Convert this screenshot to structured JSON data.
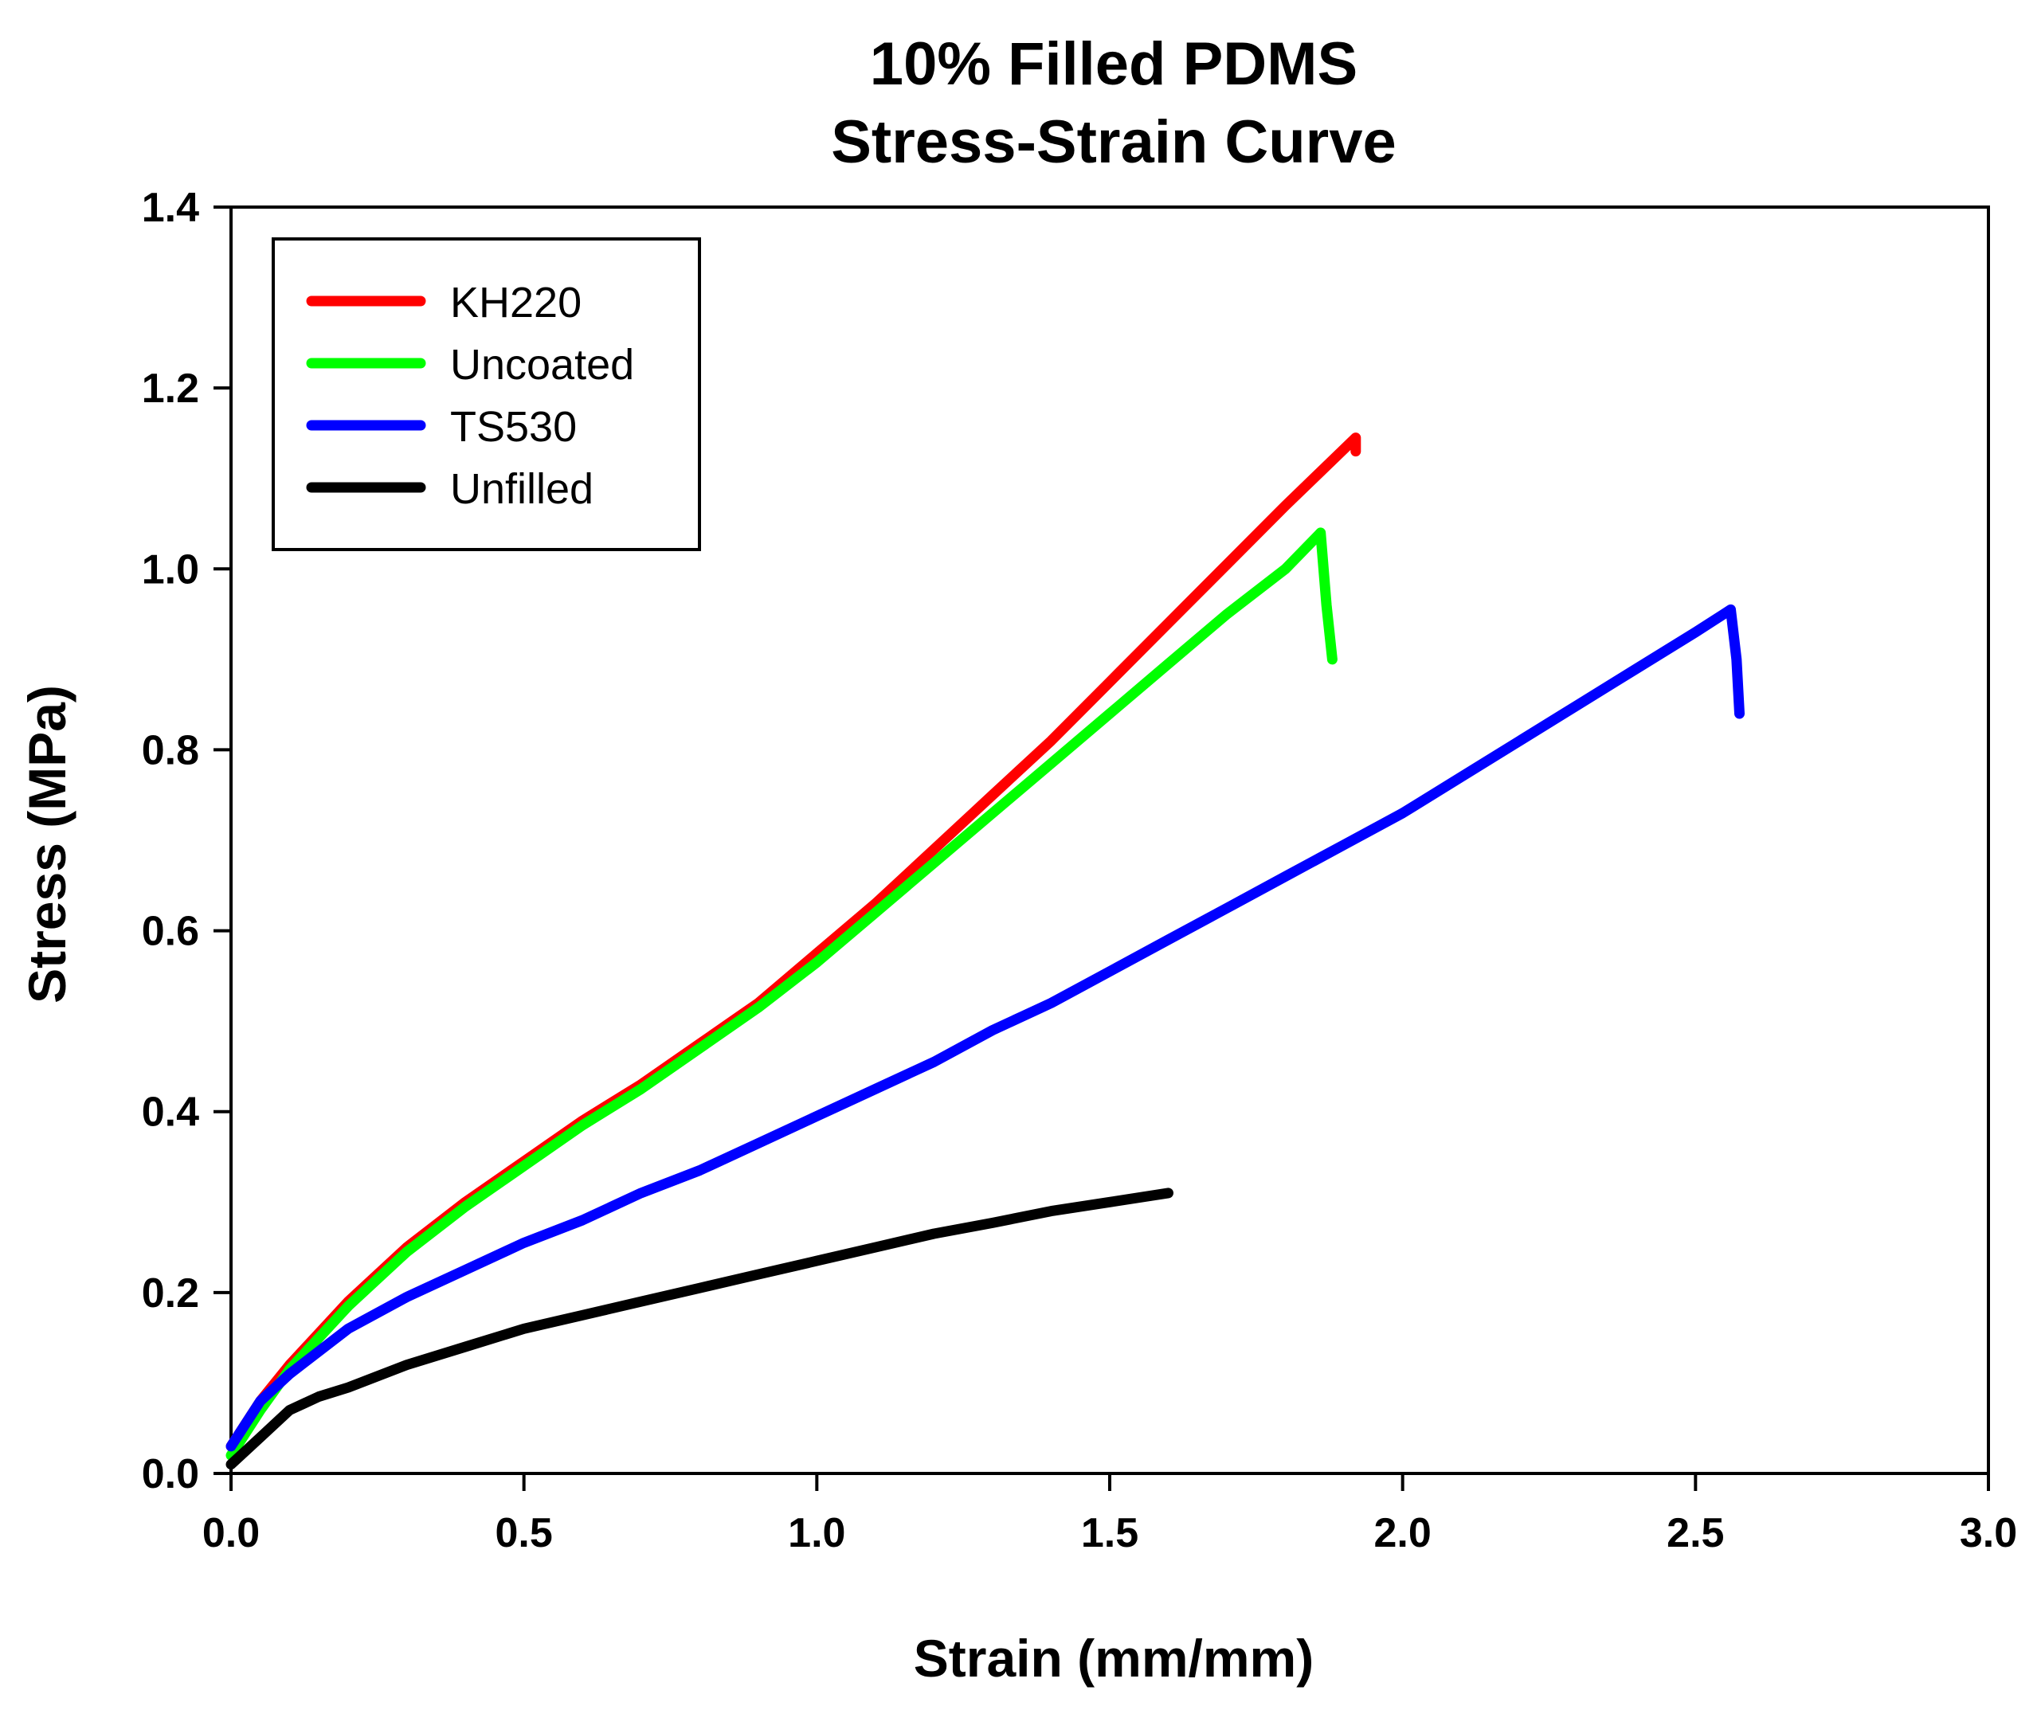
{
  "chart_data": {
    "type": "line",
    "title_line1": "10% Filled PDMS",
    "title_line2": "Stress-Strain Curve",
    "xlabel": "Strain (mm/mm)",
    "ylabel": "Stress (MPa)",
    "xlim": [
      0,
      3.0
    ],
    "ylim": [
      0,
      1.4
    ],
    "x_ticks": [
      "0.0",
      "0.5",
      "1.0",
      "1.5",
      "2.0",
      "2.5",
      "3.0"
    ],
    "y_ticks": [
      "0.0",
      "0.2",
      "0.4",
      "0.6",
      "0.8",
      "1.0",
      "1.2",
      "1.4"
    ],
    "grid": false,
    "legend_position": "top-left",
    "series": [
      {
        "name": "KH220",
        "color": "#ff0000",
        "points": [
          [
            0.0,
            0.03
          ],
          [
            0.05,
            0.08
          ],
          [
            0.1,
            0.12
          ],
          [
            0.2,
            0.19
          ],
          [
            0.3,
            0.25
          ],
          [
            0.4,
            0.3
          ],
          [
            0.5,
            0.345
          ],
          [
            0.6,
            0.39
          ],
          [
            0.7,
            0.43
          ],
          [
            0.8,
            0.475
          ],
          [
            0.9,
            0.52
          ],
          [
            1.0,
            0.575
          ],
          [
            1.1,
            0.63
          ],
          [
            1.2,
            0.69
          ],
          [
            1.3,
            0.75
          ],
          [
            1.4,
            0.81
          ],
          [
            1.5,
            0.875
          ],
          [
            1.6,
            0.94
          ],
          [
            1.7,
            1.005
          ],
          [
            1.8,
            1.07
          ],
          [
            1.92,
            1.145
          ],
          [
            1.92,
            1.13
          ]
        ]
      },
      {
        "name": "Uncoated",
        "color": "#00ff00",
        "points": [
          [
            0.0,
            0.02
          ],
          [
            0.05,
            0.07
          ],
          [
            0.1,
            0.115
          ],
          [
            0.2,
            0.185
          ],
          [
            0.3,
            0.245
          ],
          [
            0.4,
            0.295
          ],
          [
            0.5,
            0.34
          ],
          [
            0.6,
            0.385
          ],
          [
            0.7,
            0.425
          ],
          [
            0.8,
            0.47
          ],
          [
            0.9,
            0.515
          ],
          [
            1.0,
            0.565
          ],
          [
            1.1,
            0.62
          ],
          [
            1.2,
            0.675
          ],
          [
            1.3,
            0.73
          ],
          [
            1.4,
            0.785
          ],
          [
            1.5,
            0.84
          ],
          [
            1.6,
            0.895
          ],
          [
            1.7,
            0.95
          ],
          [
            1.8,
            1.0
          ],
          [
            1.86,
            1.04
          ],
          [
            1.87,
            0.96
          ],
          [
            1.88,
            0.9
          ]
        ]
      },
      {
        "name": "TS530",
        "color": "#0000ff",
        "points": [
          [
            0.0,
            0.03
          ],
          [
            0.05,
            0.08
          ],
          [
            0.1,
            0.11
          ],
          [
            0.2,
            0.16
          ],
          [
            0.3,
            0.195
          ],
          [
            0.4,
            0.225
          ],
          [
            0.5,
            0.255
          ],
          [
            0.6,
            0.28
          ],
          [
            0.7,
            0.31
          ],
          [
            0.8,
            0.335
          ],
          [
            0.9,
            0.365
          ],
          [
            1.0,
            0.395
          ],
          [
            1.1,
            0.425
          ],
          [
            1.2,
            0.455
          ],
          [
            1.3,
            0.49
          ],
          [
            1.4,
            0.52
          ],
          [
            1.5,
            0.555
          ],
          [
            1.6,
            0.59
          ],
          [
            1.7,
            0.625
          ],
          [
            1.8,
            0.66
          ],
          [
            1.9,
            0.695
          ],
          [
            2.0,
            0.73
          ],
          [
            2.1,
            0.77
          ],
          [
            2.2,
            0.81
          ],
          [
            2.3,
            0.85
          ],
          [
            2.4,
            0.89
          ],
          [
            2.5,
            0.93
          ],
          [
            2.56,
            0.955
          ],
          [
            2.57,
            0.9
          ],
          [
            2.575,
            0.84
          ]
        ]
      },
      {
        "name": "Unfilled",
        "color": "#000000",
        "points": [
          [
            0.0,
            0.01
          ],
          [
            0.05,
            0.04
          ],
          [
            0.1,
            0.07
          ],
          [
            0.15,
            0.085
          ],
          [
            0.2,
            0.095
          ],
          [
            0.3,
            0.12
          ],
          [
            0.4,
            0.14
          ],
          [
            0.5,
            0.16
          ],
          [
            0.6,
            0.175
          ],
          [
            0.7,
            0.19
          ],
          [
            0.8,
            0.205
          ],
          [
            0.9,
            0.22
          ],
          [
            1.0,
            0.235
          ],
          [
            1.1,
            0.25
          ],
          [
            1.2,
            0.265
          ],
          [
            1.3,
            0.277
          ],
          [
            1.4,
            0.29
          ],
          [
            1.5,
            0.3
          ],
          [
            1.6,
            0.31
          ]
        ]
      }
    ]
  }
}
